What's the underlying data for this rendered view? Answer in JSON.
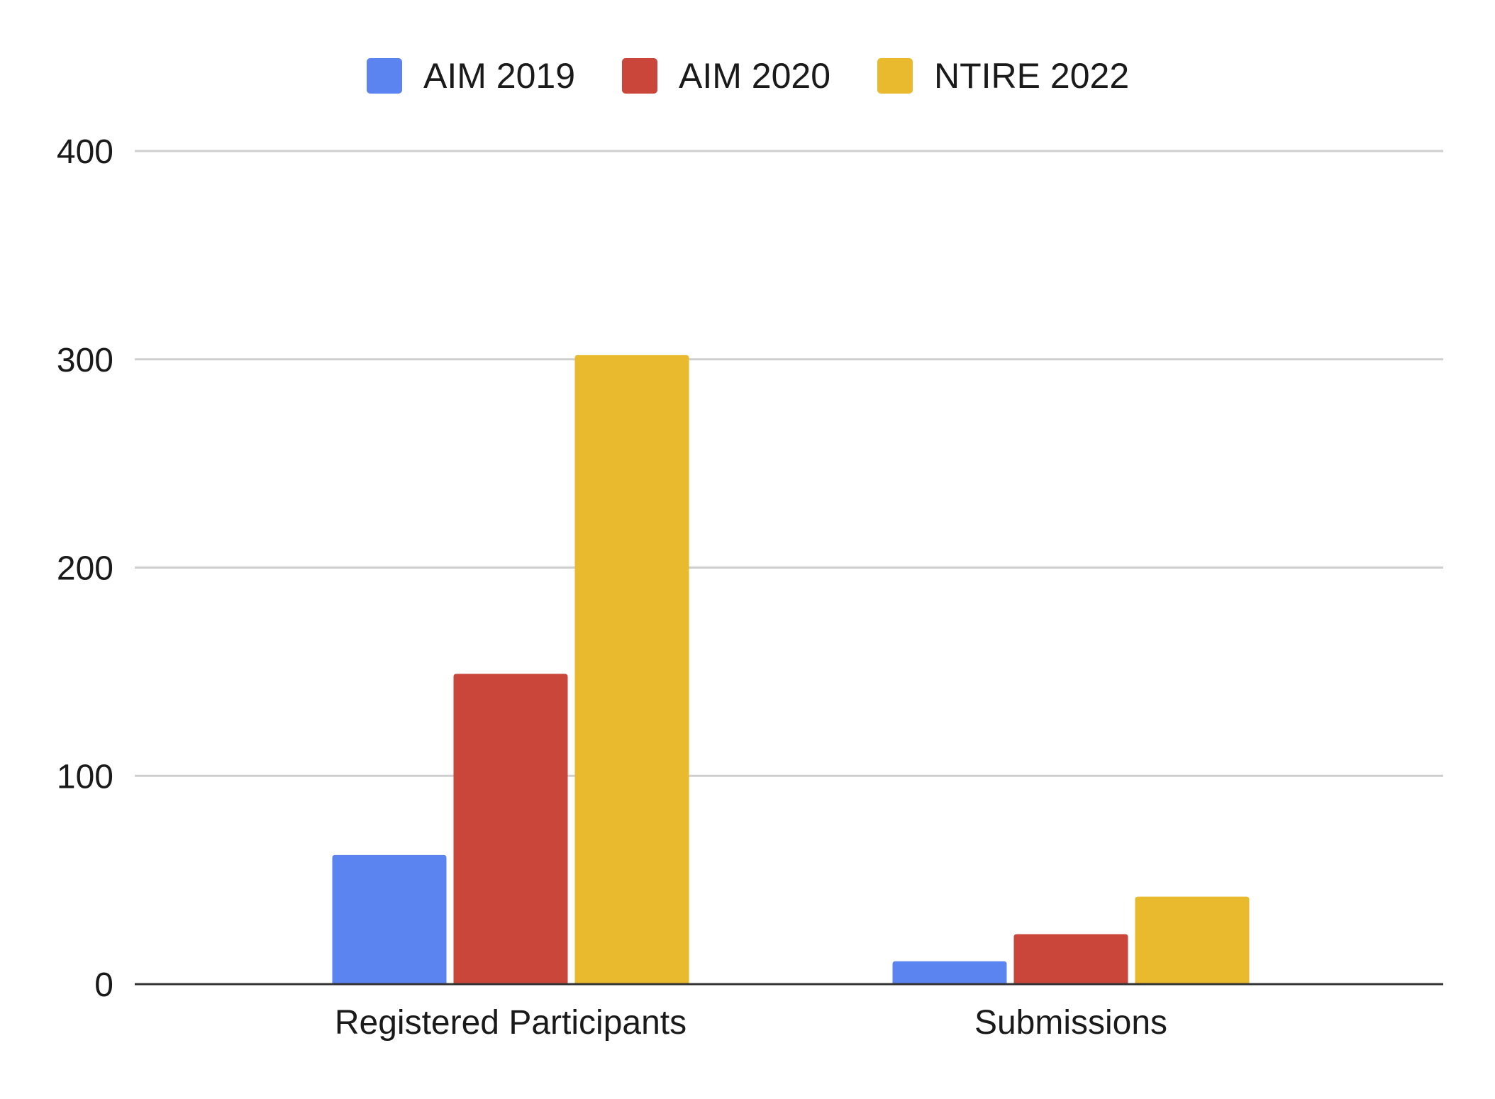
{
  "chart_data": {
    "type": "bar",
    "categories": [
      "Registered Participants",
      "Submissions"
    ],
    "series": [
      {
        "name": "AIM 2019",
        "color": "#5b84f1",
        "values": [
          62,
          11
        ]
      },
      {
        "name": "AIM 2020",
        "color": "#cb463a",
        "values": [
          149,
          24
        ]
      },
      {
        "name": "NTIRE 2022",
        "color": "#e9ba2e",
        "values": [
          302,
          42
        ]
      }
    ],
    "yticks": [
      "0",
      "100",
      "200",
      "300",
      "400"
    ],
    "ylim": [
      0,
      400
    ],
    "grid": true,
    "legend_position": "top-center"
  }
}
